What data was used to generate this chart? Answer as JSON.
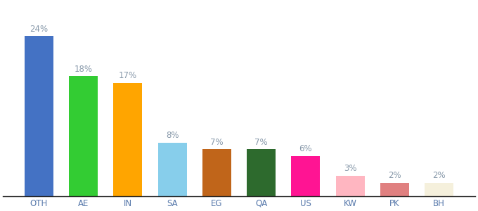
{
  "categories": [
    "OTH",
    "AE",
    "IN",
    "SA",
    "EG",
    "QA",
    "US",
    "KW",
    "PK",
    "BH"
  ],
  "values": [
    24,
    18,
    17,
    8,
    7,
    7,
    6,
    3,
    2,
    2
  ],
  "bar_colors": [
    "#4472C4",
    "#33CC33",
    "#FFA500",
    "#87CEEB",
    "#C0651A",
    "#2D6A2D",
    "#FF1493",
    "#FFB6C1",
    "#E08080",
    "#F5F0DC"
  ],
  "label_color": "#8899AA",
  "label_fontsize": 8.5,
  "xlabel_fontsize": 8.5,
  "xlabel_color": "#5577AA",
  "background_color": "#ffffff",
  "ylim": [
    0,
    29
  ],
  "bar_width": 0.65,
  "figsize": [
    6.8,
    3.0
  ],
  "dpi": 100
}
